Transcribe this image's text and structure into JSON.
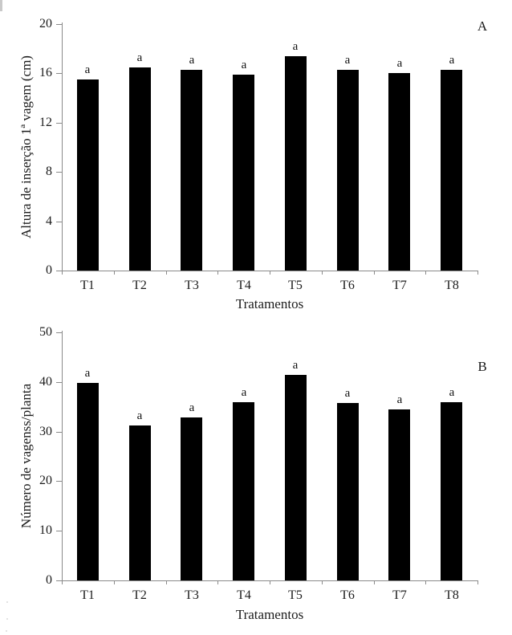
{
  "page": {
    "background": "#ffffff"
  },
  "chart_data": [
    {
      "type": "bar",
      "panel_label": "A",
      "categories": [
        "T1",
        "T2",
        "T3",
        "T4",
        "T5",
        "T6",
        "T7",
        "T8"
      ],
      "values": [
        15.5,
        16.5,
        16.3,
        15.9,
        17.4,
        16.3,
        16.0,
        16.3
      ],
      "bar_labels": [
        "a",
        "a",
        "a",
        "a",
        "a",
        "a",
        "a",
        "a"
      ],
      "title": "",
      "xlabel": "Tratamentos",
      "ylabel": "Altura de inserção 1ª vagem (cm)",
      "ylim": [
        0,
        20
      ],
      "yticks": [
        0,
        4,
        8,
        12,
        16,
        20
      ],
      "grid": false,
      "legend": null,
      "bar_color": "#000000",
      "axis_color": "#8a8a8a"
    },
    {
      "type": "bar",
      "panel_label": "B",
      "categories": [
        "T1",
        "T2",
        "T3",
        "T4",
        "T5",
        "T6",
        "T7",
        "T8"
      ],
      "values": [
        39.8,
        31.3,
        32.8,
        35.9,
        41.5,
        35.8,
        34.5,
        36.0
      ],
      "bar_labels": [
        "a",
        "a",
        "a",
        "a",
        "a",
        "a",
        "a",
        "a"
      ],
      "title": "",
      "xlabel": "Tratamentos",
      "ylabel": "Número de vagenss/planta",
      "ylim": [
        0,
        50
      ],
      "yticks": [
        0,
        10,
        20,
        30,
        40,
        50
      ],
      "grid": false,
      "legend": null,
      "bar_color": "#000000",
      "axis_color": "#8a8a8a"
    }
  ]
}
